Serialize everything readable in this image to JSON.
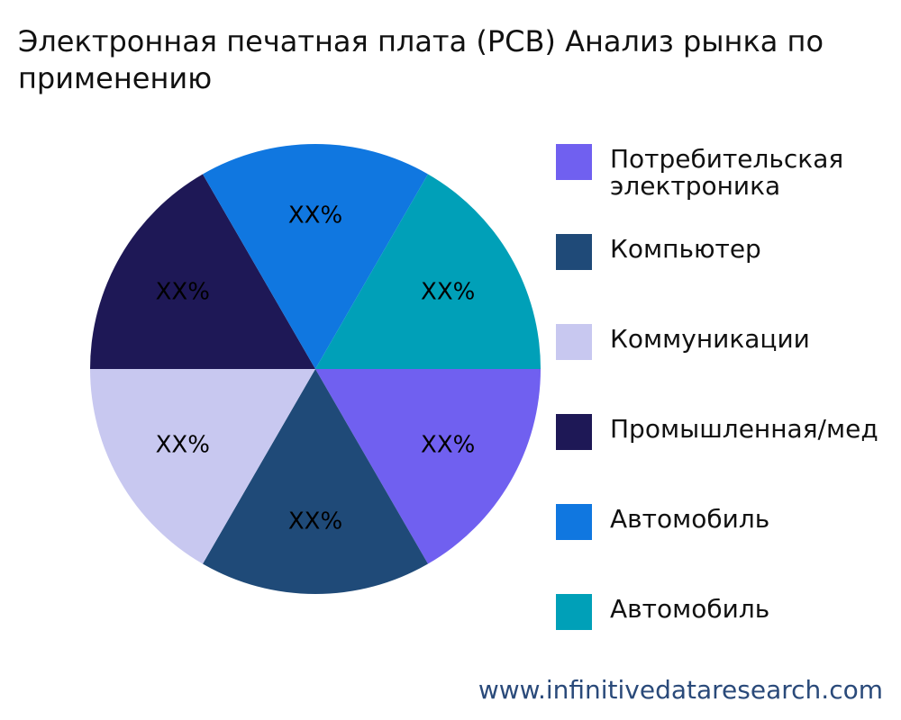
{
  "chart_data": {
    "type": "pie",
    "title": "Электронная печатная плата (PCB) Анализ рынка по применению",
    "categories": [
      "Потребительская электроника",
      "Компьютер",
      "Коммуникации",
      "Промышленная/мед",
      "Автомобиль",
      "Автомобиль"
    ],
    "values": [
      16.7,
      16.7,
      16.7,
      16.7,
      16.7,
      16.7
    ],
    "value_labels": [
      "XX%",
      "XX%",
      "XX%",
      "XX%",
      "XX%",
      "XX%"
    ],
    "colors": [
      "#7060f0",
      "#1f4a78",
      "#c8c8f0",
      "#1e1856",
      "#1077e0",
      "#00a0b8"
    ],
    "legend": "right"
  },
  "footer": "www.infinitivedataresearch.com"
}
